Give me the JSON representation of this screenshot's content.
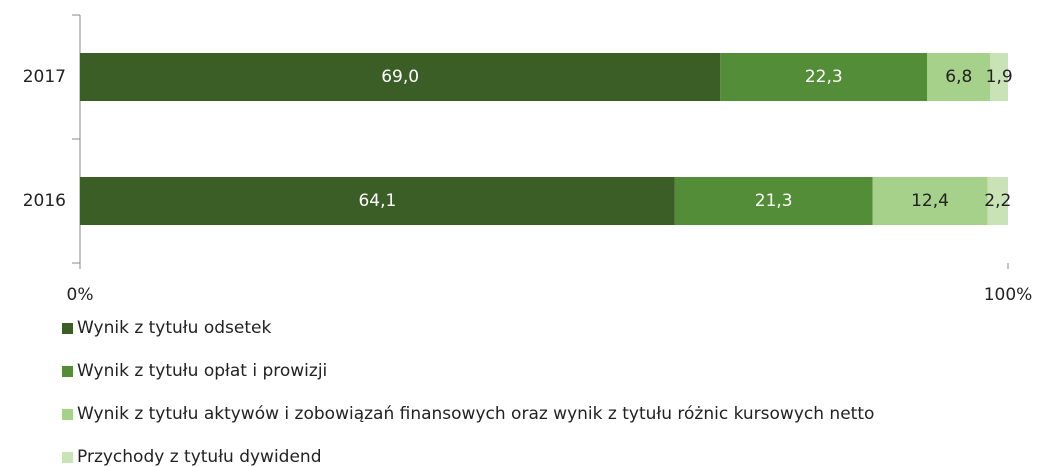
{
  "chart_data": {
    "type": "bar",
    "orientation": "horizontal",
    "stacked": true,
    "categories": [
      "2017",
      "2016"
    ],
    "series": [
      {
        "name": "Wynik z tytułu odsetek",
        "color": "#3b5e27",
        "values": [
          69.0,
          64.1
        ],
        "value_labels": [
          "69,0",
          "64,1"
        ]
      },
      {
        "name": "Wynik z tytułu opłat i prowizji",
        "color": "#548d38",
        "values": [
          22.3,
          21.3
        ],
        "value_labels": [
          "22,3",
          "21,3"
        ]
      },
      {
        "name": "Wynik z tytułu aktywów i zobowiązań finansowych oraz wynik z tytułu różnic kursowych netto",
        "color": "#a6d18b",
        "values": [
          6.8,
          12.4
        ],
        "value_labels": [
          "6,8",
          "12,4"
        ]
      },
      {
        "name": "Przychody z tytułu dywidend",
        "color": "#c9e3b6",
        "values": [
          1.9,
          2.2
        ],
        "value_labels": [
          "1,9",
          "2,2"
        ]
      }
    ],
    "xlim": [
      0,
      100
    ],
    "xticks": [
      {
        "value": 0,
        "label": "0%"
      },
      {
        "value": 100,
        "label": "100%"
      }
    ],
    "legend": "bottom"
  }
}
